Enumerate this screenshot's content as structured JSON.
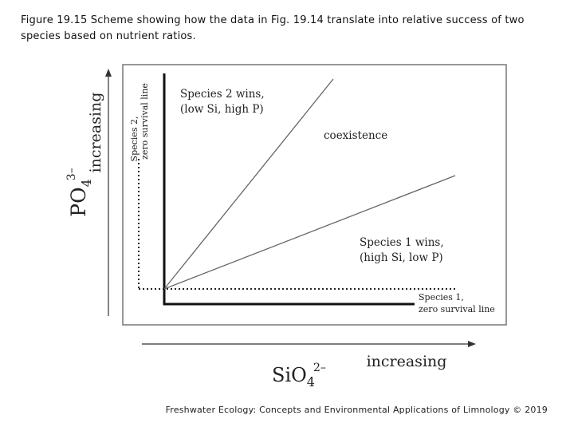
{
  "caption": "Figure 19.15 Scheme showing how the data in Fig. 19.14 translate into relative success of two species based on nutrient ratios.",
  "footer": "Freshwater Ecology: Concepts and Environmental Applications of Limnology © 2019",
  "diagram": {
    "y_axis": {
      "label": "increasing",
      "nutrient_base": "PO",
      "nutrient_sub": "4",
      "nutrient_sup": "3–"
    },
    "x_axis": {
      "label": "increasing",
      "nutrient_base": "SiO",
      "nutrient_sub": "4",
      "nutrient_sup": "2–"
    },
    "regions": {
      "species2_title": "Species 2 wins,",
      "species2_detail": "(low Si, high P)",
      "coexistence": "coexistence",
      "species1_title": "Species 1 wins,",
      "species1_detail": "(high Si, low P)"
    },
    "zero_lines": {
      "species2_name": "Species 2,",
      "species2_line": "zero survival line",
      "species1_name": "Species 1,",
      "species1_line": "zero survival line"
    }
  }
}
